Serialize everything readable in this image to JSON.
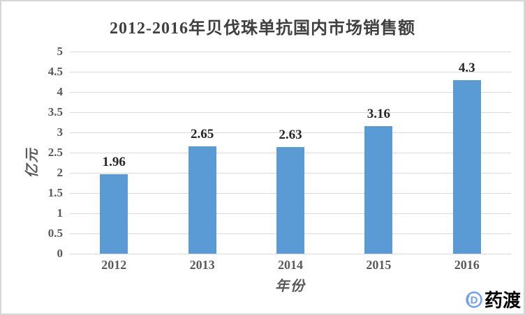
{
  "watermark": {
    "text": "药渡"
  },
  "chart_data": {
    "type": "bar",
    "title": "2012-2016年贝伐珠单抗国内市场销售额",
    "categories": [
      "2012",
      "2013",
      "2014",
      "2015",
      "2016"
    ],
    "values": [
      1.96,
      2.65,
      2.63,
      3.16,
      4.3
    ],
    "data_labels": [
      "1.96",
      "2.65",
      "2.63",
      "3.16",
      "4.3"
    ],
    "xlabel": "年份",
    "ylabel": "亿元",
    "ylim": [
      0,
      5
    ],
    "ytick_step": 0.5,
    "ytick_labels": [
      "0",
      "0.5",
      "1",
      "1.5",
      "2",
      "2.5",
      "3",
      "3.5",
      "4",
      "4.5",
      "5"
    ],
    "grid": true,
    "legend": false,
    "bar_color": "#5B9BD5",
    "gridline_color": "#D9D9D9",
    "title_color": "#3F3F3F",
    "tick_label_color": "#595959",
    "data_label_color": "#262626",
    "watermark_color": "#6C9FF2"
  }
}
